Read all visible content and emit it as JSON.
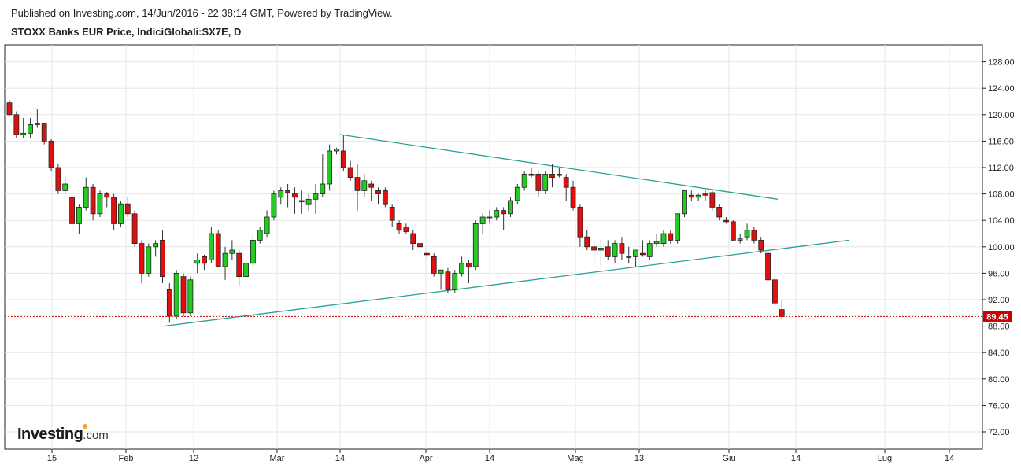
{
  "header": {
    "published": "Published on Investing.com, 14/Jun/2016 - 22:38:14 GMT, Powered by TradingView.",
    "symbol": "STOXX Banks EUR Price, IndiciGlobali:SX7E, D"
  },
  "branding": {
    "logo_main": "Investing",
    "logo_domain": ".com",
    "logo_dot_color": "#f5a623"
  },
  "colors": {
    "up": "#22cc22",
    "down": "#e01010",
    "trendline": "#2aa198",
    "last_price": "#cc0000"
  },
  "chart_data": {
    "type": "candlestick",
    "ylim": [
      68,
      130
    ],
    "y_ticks": [
      "72.00",
      "76.00",
      "80.00",
      "84.00",
      "88.00",
      "92.00",
      "96.00",
      "100.00",
      "104.00",
      "108.00",
      "112.00",
      "116.00",
      "120.00",
      "124.00",
      "128.00"
    ],
    "x_ticks": [
      "15",
      "Feb",
      "12",
      "Mar",
      "14",
      "Apr",
      "14",
      "Mag",
      "13",
      "Giu",
      "14",
      "Lug",
      "14"
    ],
    "last_price": {
      "value": 89.45,
      "label": "89.45"
    },
    "candles": [
      [
        121.8,
        122.2,
        119.8,
        120.0
      ],
      [
        120.0,
        120.5,
        116.5,
        117.0
      ],
      [
        117.0,
        119.5,
        116.5,
        117.2
      ],
      [
        117.2,
        119.5,
        116.5,
        118.5
      ],
      [
        118.5,
        120.8,
        118.0,
        118.6
      ],
      [
        118.6,
        118.8,
        115.5,
        116.0
      ],
      [
        116.0,
        116.3,
        111.5,
        112.0
      ],
      [
        112.0,
        112.5,
        108.0,
        108.5
      ],
      [
        108.5,
        110.5,
        108.0,
        109.5
      ],
      [
        107.5,
        107.8,
        102.5,
        103.5
      ],
      [
        103.5,
        106.5,
        102.0,
        106.0
      ],
      [
        106.0,
        110.5,
        105.5,
        109.0
      ],
      [
        109.0,
        109.5,
        104.0,
        105.0
      ],
      [
        105.0,
        108.5,
        104.5,
        108.0
      ],
      [
        108.0,
        108.3,
        106.0,
        107.5
      ],
      [
        107.5,
        108.0,
        102.5,
        103.5
      ],
      [
        103.5,
        107.0,
        103.0,
        106.5
      ],
      [
        106.5,
        107.5,
        104.5,
        105.0
      ],
      [
        105.0,
        105.5,
        100.0,
        100.5
      ],
      [
        100.5,
        101.0,
        94.5,
        96.0
      ],
      [
        96.0,
        100.5,
        95.5,
        100.0
      ],
      [
        100.0,
        101.0,
        98.5,
        100.5
      ],
      [
        101.0,
        102.5,
        94.5,
        95.5
      ],
      [
        93.5,
        94.5,
        88.5,
        89.5
      ],
      [
        89.5,
        96.5,
        89.0,
        96.0
      ],
      [
        95.5,
        96.0,
        89.5,
        90.0
      ],
      [
        90.0,
        95.5,
        89.5,
        95.0
      ],
      [
        97.5,
        99.0,
        96.0,
        98.0
      ],
      [
        98.5,
        98.8,
        96.5,
        97.5
      ],
      [
        98.0,
        103.0,
        97.5,
        102.0
      ],
      [
        102.0,
        102.5,
        97.5,
        97.0
      ],
      [
        97.0,
        100.0,
        95.0,
        99.0
      ],
      [
        99.0,
        101.0,
        98.0,
        99.5
      ],
      [
        99.0,
        99.5,
        94.0,
        95.5
      ],
      [
        95.5,
        98.0,
        95.0,
        97.5
      ],
      [
        97.5,
        102.0,
        97.0,
        101.0
      ],
      [
        101.0,
        103.0,
        100.5,
        102.5
      ],
      [
        102.0,
        105.5,
        101.5,
        104.5
      ],
      [
        104.5,
        108.5,
        104.0,
        108.0
      ],
      [
        107.5,
        109.0,
        106.5,
        108.5
      ],
      [
        108.5,
        109.5,
        106.0,
        108.2
      ],
      [
        108.0,
        109.0,
        105.0,
        107.5
      ],
      [
        106.8,
        108.5,
        105.0,
        107.0
      ],
      [
        106.5,
        108.0,
        105.5,
        107.2
      ],
      [
        107.2,
        109.5,
        105.0,
        108.0
      ],
      [
        108.0,
        114.0,
        107.5,
        109.5
      ],
      [
        109.5,
        115.5,
        108.5,
        114.5
      ],
      [
        114.5,
        115.0,
        114.0,
        114.8
      ],
      [
        114.5,
        117.0,
        111.5,
        112.0
      ],
      [
        112.0,
        113.0,
        110.0,
        110.5
      ],
      [
        110.5,
        112.5,
        105.5,
        108.5
      ],
      [
        108.5,
        111.0,
        107.5,
        110.0
      ],
      [
        109.5,
        110.0,
        107.0,
        109.0
      ],
      [
        108.5,
        109.0,
        106.5,
        108.0
      ],
      [
        108.5,
        109.0,
        106.0,
        106.5
      ],
      [
        106.0,
        106.5,
        103.0,
        104.0
      ],
      [
        103.5,
        104.0,
        102.0,
        102.5
      ],
      [
        103.0,
        103.5,
        102.0,
        102.3
      ],
      [
        102.0,
        102.5,
        99.5,
        100.5
      ],
      [
        100.5,
        101.0,
        99.0,
        100.0
      ],
      [
        99.0,
        99.5,
        98.0,
        98.8
      ],
      [
        98.5,
        99.0,
        95.5,
        96.0
      ],
      [
        96.0,
        96.5,
        93.5,
        96.5
      ],
      [
        96.2,
        96.8,
        93.0,
        93.5
      ],
      [
        93.5,
        96.5,
        93.0,
        96.0
      ],
      [
        96.0,
        98.5,
        95.5,
        97.5
      ],
      [
        97.5,
        98.0,
        94.5,
        97.0
      ],
      [
        97.0,
        104.0,
        96.5,
        103.5
      ],
      [
        103.5,
        105.0,
        102.0,
        104.5
      ],
      [
        104.5,
        105.5,
        103.5,
        104.5
      ],
      [
        104.5,
        106.0,
        104.0,
        105.5
      ],
      [
        105.5,
        106.0,
        102.5,
        105.0
      ],
      [
        105.0,
        107.5,
        104.5,
        107.0
      ],
      [
        107.0,
        109.5,
        106.5,
        109.0
      ],
      [
        109.0,
        111.5,
        108.5,
        111.0
      ],
      [
        111.0,
        112.0,
        110.5,
        110.8
      ],
      [
        111.0,
        111.5,
        107.5,
        108.5
      ],
      [
        108.5,
        111.5,
        108.0,
        111.0
      ],
      [
        111.0,
        112.5,
        109.0,
        110.5
      ],
      [
        111.0,
        112.0,
        110.5,
        110.8
      ],
      [
        110.5,
        111.0,
        107.0,
        109.0
      ],
      [
        109.0,
        110.0,
        105.5,
        106.0
      ],
      [
        106.0,
        106.5,
        100.0,
        101.5
      ],
      [
        101.5,
        102.5,
        99.5,
        100.0
      ],
      [
        100.0,
        101.0,
        97.5,
        99.5
      ],
      [
        99.5,
        101.0,
        97.0,
        99.8
      ],
      [
        100.0,
        101.0,
        98.0,
        98.5
      ],
      [
        98.5,
        101.0,
        97.5,
        100.5
      ],
      [
        100.5,
        101.5,
        98.0,
        99.0
      ],
      [
        98.5,
        100.0,
        97.5,
        98.5
      ],
      [
        98.5,
        99.0,
        97.0,
        99.5
      ],
      [
        99.0,
        101.0,
        98.5,
        98.8
      ],
      [
        98.5,
        101.0,
        98.0,
        100.5
      ],
      [
        100.5,
        102.0,
        100.0,
        100.8
      ],
      [
        100.5,
        102.5,
        100.0,
        102.0
      ],
      [
        102.0,
        102.5,
        100.5,
        101.0
      ],
      [
        101.0,
        105.0,
        100.5,
        105.0
      ],
      [
        105.0,
        108.5,
        104.5,
        108.5
      ],
      [
        107.8,
        108.5,
        107.0,
        107.5
      ],
      [
        107.5,
        108.0,
        107.0,
        107.8
      ],
      [
        108.0,
        108.5,
        107.0,
        107.8
      ],
      [
        108.2,
        108.5,
        105.5,
        106.0
      ],
      [
        106.0,
        106.5,
        104.0,
        104.5
      ],
      [
        104.0,
        104.5,
        103.5,
        103.8
      ],
      [
        103.8,
        104.0,
        101.0,
        101.0
      ],
      [
        101.0,
        102.0,
        100.5,
        101.2
      ],
      [
        101.5,
        103.5,
        101.0,
        102.5
      ],
      [
        102.5,
        103.0,
        100.5,
        101.0
      ],
      [
        101.0,
        101.5,
        99.0,
        99.5
      ],
      [
        99.0,
        99.5,
        94.5,
        95.0
      ],
      [
        95.0,
        95.5,
        91.0,
        91.5
      ],
      [
        90.5,
        92.0,
        89.0,
        89.45
      ]
    ],
    "trendlines": [
      {
        "from": [
          "2016-03-14",
          117.0
        ],
        "to": [
          "2016-06-09",
          107.2
        ]
      },
      {
        "from": [
          "2016-02-08",
          88.0
        ],
        "to": [
          "2016-06-24",
          101.0
        ]
      }
    ]
  }
}
